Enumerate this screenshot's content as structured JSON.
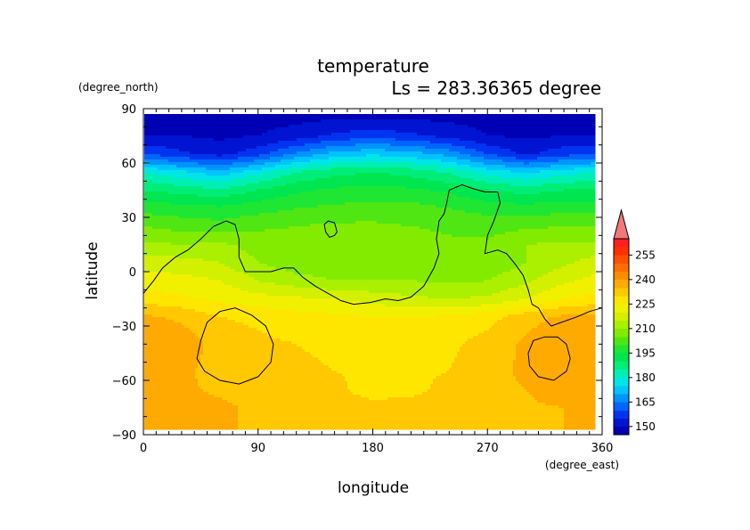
{
  "chart_data": {
    "type": "heatmap",
    "title": "temperature",
    "subtitle": "Ls = 283.36365 degree",
    "xlabel": "longitude",
    "ylabel": "latitude",
    "x_units": "(degree_east)",
    "y_units": "(degree_north)",
    "xlim": [
      0,
      360
    ],
    "ylim": [
      -90,
      90
    ],
    "x_ticks": [
      "0",
      "90",
      "180",
      "270",
      "360"
    ],
    "y_ticks": [
      "90",
      "60",
      "30",
      "0",
      "−30",
      "−60",
      "−90"
    ],
    "x_tick_values": [
      0,
      90,
      180,
      270,
      360
    ],
    "y_tick_values": [
      90,
      60,
      30,
      0,
      -30,
      -60,
      -90
    ],
    "grid": false,
    "data_lat_range": [
      -87,
      87
    ],
    "colorbar": {
      "labels": [
        "255",
        "240",
        "225",
        "210",
        "195",
        "180",
        "165",
        "150"
      ],
      "label_values": [
        255,
        240,
        225,
        210,
        195,
        180,
        165,
        150
      ],
      "levels": [
        145,
        150,
        155,
        160,
        165,
        170,
        175,
        180,
        185,
        190,
        195,
        200,
        205,
        210,
        215,
        220,
        225,
        230,
        235,
        240,
        245,
        250,
        255,
        260
      ],
      "colors": [
        "#0000b4",
        "#0014d2",
        "#0034f0",
        "#0064ff",
        "#0094ff",
        "#00c4ff",
        "#00e6e6",
        "#00f0b4",
        "#00ee78",
        "#00e650",
        "#1ee632",
        "#50e614",
        "#82eb00",
        "#aaf000",
        "#d2f000",
        "#f0f000",
        "#ffe600",
        "#ffc800",
        "#ffaa00",
        "#ff8c00",
        "#ff6e00",
        "#ff5000",
        "#ff3000",
        "#ff1e1e"
      ],
      "overflow_color": "#f07878"
    },
    "lon_samples": [
      0,
      30,
      60,
      90,
      120,
      150,
      180,
      210,
      240,
      270,
      300,
      330,
      360
    ],
    "rows": [
      {
        "lat": 87,
        "values": [
          148,
          148,
          148,
          148,
          148,
          148,
          148,
          148,
          148,
          148,
          148,
          148,
          148
        ]
      },
      {
        "lat": 75,
        "values": [
          150,
          150,
          149,
          150,
          152,
          156,
          158,
          156,
          153,
          150,
          149,
          150,
          150
        ]
      },
      {
        "lat": 65,
        "values": [
          160,
          156,
          153,
          158,
          166,
          172,
          174,
          172,
          168,
          160,
          154,
          158,
          160
        ]
      },
      {
        "lat": 55,
        "values": [
          180,
          176,
          172,
          178,
          185,
          188,
          190,
          188,
          184,
          178,
          174,
          178,
          180
        ]
      },
      {
        "lat": 45,
        "values": [
          190,
          188,
          186,
          190,
          194,
          196,
          197,
          196,
          194,
          190,
          188,
          190,
          190
        ]
      },
      {
        "lat": 35,
        "values": [
          198,
          197,
          196,
          198,
          200,
          201,
          202,
          202,
          200,
          198,
          197,
          198,
          198
        ]
      },
      {
        "lat": 25,
        "values": [
          205,
          203,
          202,
          204,
          205,
          206,
          206,
          205,
          204,
          203,
          204,
          205,
          205
        ]
      },
      {
        "lat": 15,
        "values": [
          211,
          210,
          211,
          208,
          208,
          210,
          210,
          208,
          206,
          206,
          210,
          211,
          211
        ]
      },
      {
        "lat": 5,
        "values": [
          218,
          217,
          215,
          210,
          207,
          207,
          208,
          208,
          206,
          206,
          210,
          214,
          218
        ]
      },
      {
        "lat": -5,
        "values": [
          222,
          222,
          220,
          215,
          212,
          210,
          210,
          210,
          209,
          210,
          214,
          219,
          222
        ]
      },
      {
        "lat": -15,
        "values": [
          228,
          226,
          224,
          222,
          221,
          220,
          218,
          216,
          215,
          216,
          220,
          225,
          228
        ]
      },
      {
        "lat": -25,
        "values": [
          236,
          234,
          230,
          229,
          227,
          226,
          225,
          225,
          226,
          228,
          233,
          236,
          236
        ]
      },
      {
        "lat": -40,
        "values": [
          238,
          238,
          233,
          231,
          230,
          229,
          228,
          228,
          229,
          232,
          236,
          240,
          238
        ]
      },
      {
        "lat": -55,
        "values": [
          238,
          236,
          233,
          232,
          231,
          230,
          229,
          229,
          230,
          233,
          236,
          240,
          238
        ]
      },
      {
        "lat": -65,
        "values": [
          236,
          236,
          234,
          233,
          232,
          232,
          226,
          228,
          232,
          234,
          235,
          239,
          236
        ]
      },
      {
        "lat": -75,
        "values": [
          238,
          238,
          236,
          234,
          234,
          234,
          233,
          233,
          234,
          234,
          234,
          235,
          238
        ]
      },
      {
        "lat": -87,
        "values": [
          236,
          236,
          235,
          235,
          235,
          235,
          235,
          235,
          235,
          235,
          235,
          235,
          236
        ]
      }
    ],
    "contours": [
      {
        "name": "continent-outline",
        "points": [
          [
            0,
            -12
          ],
          [
            8,
            -5
          ],
          [
            15,
            2
          ],
          [
            25,
            8
          ],
          [
            35,
            12
          ],
          [
            45,
            18
          ],
          [
            55,
            25
          ],
          [
            65,
            28
          ],
          [
            72,
            26
          ],
          [
            75,
            18
          ],
          [
            75,
            8
          ],
          [
            80,
            0
          ],
          [
            88,
            0
          ],
          [
            100,
            0
          ],
          [
            110,
            2
          ],
          [
            118,
            2
          ],
          [
            125,
            -3
          ],
          [
            135,
            -8
          ],
          [
            145,
            -12
          ],
          [
            155,
            -16
          ],
          [
            165,
            -18
          ],
          [
            178,
            -17
          ],
          [
            190,
            -15
          ],
          [
            200,
            -16
          ],
          [
            210,
            -14
          ],
          [
            220,
            -8
          ],
          [
            228,
            2
          ],
          [
            232,
            10
          ],
          [
            230,
            18
          ],
          [
            232,
            28
          ],
          [
            236,
            32
          ],
          [
            238,
            38
          ],
          [
            240,
            45
          ],
          [
            250,
            48
          ],
          [
            258,
            46
          ],
          [
            268,
            44
          ],
          [
            278,
            44
          ],
          [
            280,
            38
          ],
          [
            275,
            28
          ],
          [
            270,
            20
          ],
          [
            268,
            10
          ],
          [
            278,
            12
          ],
          [
            285,
            10
          ],
          [
            292,
            4
          ],
          [
            298,
            -2
          ],
          [
            302,
            -10
          ],
          [
            305,
            -18
          ],
          [
            310,
            -20
          ],
          [
            315,
            -26
          ],
          [
            320,
            -30
          ],
          [
            328,
            -28
          ],
          [
            340,
            -25
          ],
          [
            350,
            -22
          ],
          [
            360,
            -20
          ]
        ]
      },
      {
        "name": "small-island",
        "points": [
          [
            143,
            22
          ],
          [
            142,
            26
          ],
          [
            145,
            28
          ],
          [
            150,
            27
          ],
          [
            152,
            22
          ],
          [
            150,
            20
          ],
          [
            146,
            19
          ],
          [
            143,
            22
          ]
        ]
      },
      {
        "name": "hellas-contour",
        "points": [
          [
            45,
            -38
          ],
          [
            50,
            -28
          ],
          [
            60,
            -22
          ],
          [
            72,
            -20
          ],
          [
            85,
            -24
          ],
          [
            96,
            -30
          ],
          [
            102,
            -40
          ],
          [
            100,
            -50
          ],
          [
            90,
            -58
          ],
          [
            75,
            -62
          ],
          [
            60,
            -60
          ],
          [
            48,
            -55
          ],
          [
            42,
            -48
          ],
          [
            45,
            -38
          ]
        ]
      },
      {
        "name": "argyre-contour",
        "points": [
          [
            302,
            -45
          ],
          [
            306,
            -38
          ],
          [
            315,
            -36
          ],
          [
            325,
            -36
          ],
          [
            332,
            -40
          ],
          [
            335,
            -48
          ],
          [
            332,
            -55
          ],
          [
            322,
            -60
          ],
          [
            310,
            -58
          ],
          [
            303,
            -52
          ],
          [
            302,
            -45
          ]
        ]
      }
    ]
  }
}
